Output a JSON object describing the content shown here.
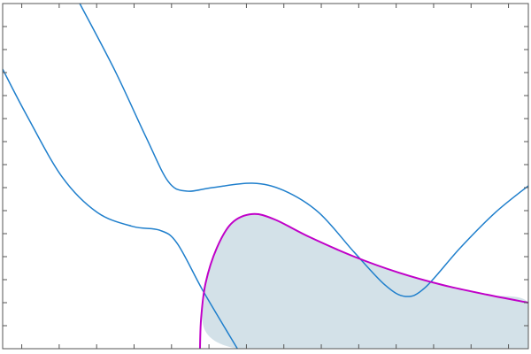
{
  "chart_data": {
    "type": "line",
    "title": "",
    "xlabel": "",
    "ylabel": "",
    "xlim": [
      -0.51,
      13.53
    ],
    "ylim": [
      0,
      15
    ],
    "x_ticks": [
      0,
      1,
      2,
      3,
      4,
      5,
      6,
      7,
      8,
      9,
      10,
      11,
      12,
      13
    ],
    "y_ticks": [
      1,
      2,
      3,
      4,
      5,
      6,
      7,
      8,
      9,
      10,
      11,
      12,
      13,
      14
    ],
    "grid": false,
    "colors": {
      "blue": "#1f7fcc",
      "magenta": "#c000c8",
      "fill": "#d3e1e8",
      "axis": "#555555"
    },
    "series": [
      {
        "color": "#1f7fcc",
        "points": [
          [
            1.55,
            15
          ],
          [
            2.49,
            12.08
          ],
          [
            3.32,
            9.19
          ],
          [
            3.91,
            7.27
          ],
          [
            4.39,
            6.85
          ],
          [
            5.09,
            7.0
          ],
          [
            6.16,
            7.19
          ],
          [
            6.99,
            6.88
          ],
          [
            7.93,
            5.92
          ],
          [
            8.88,
            4.19
          ],
          [
            9.7,
            2.77
          ],
          [
            10.25,
            2.27
          ],
          [
            10.77,
            2.65
          ],
          [
            11.71,
            4.38
          ],
          [
            12.65,
            5.92
          ],
          [
            13.53,
            7.08
          ]
        ]
      },
      {
        "color": "#1f7fcc",
        "points": [
          [
            -0.51,
            12.15
          ],
          [
            0.13,
            10.15
          ],
          [
            1.08,
            7.46
          ],
          [
            2.02,
            5.92
          ],
          [
            2.97,
            5.31
          ],
          [
            3.68,
            5.15
          ],
          [
            4.15,
            4.58
          ],
          [
            4.86,
            2.46
          ],
          [
            5.76,
            0
          ]
        ]
      },
      {
        "color": "#c000c8",
        "points": [
          [
            4.76,
            0
          ],
          [
            4.79,
            1.31
          ],
          [
            4.91,
            2.85
          ],
          [
            5.21,
            4.38
          ],
          [
            5.61,
            5.46
          ],
          [
            6.16,
            5.85
          ],
          [
            6.75,
            5.62
          ],
          [
            7.69,
            4.85
          ],
          [
            8.88,
            4
          ],
          [
            10.06,
            3.31
          ],
          [
            11.24,
            2.77
          ],
          [
            12.42,
            2.35
          ],
          [
            13.53,
            2
          ]
        ]
      }
    ],
    "shaded_region": {
      "color": "#d3e1e8",
      "points": [
        [
          4.86,
          2.65
        ],
        [
          5.21,
          4.38
        ],
        [
          5.61,
          5.46
        ],
        [
          6.16,
          5.85
        ],
        [
          6.75,
          5.62
        ],
        [
          7.69,
          4.85
        ],
        [
          8.88,
          4
        ],
        [
          10.06,
          3.31
        ],
        [
          11.24,
          2.77
        ],
        [
          12.42,
          2.35
        ],
        [
          13.53,
          2
        ],
        [
          13.53,
          0
        ],
        [
          5.76,
          0
        ],
        [
          4.86,
          2.46
        ]
      ]
    }
  }
}
